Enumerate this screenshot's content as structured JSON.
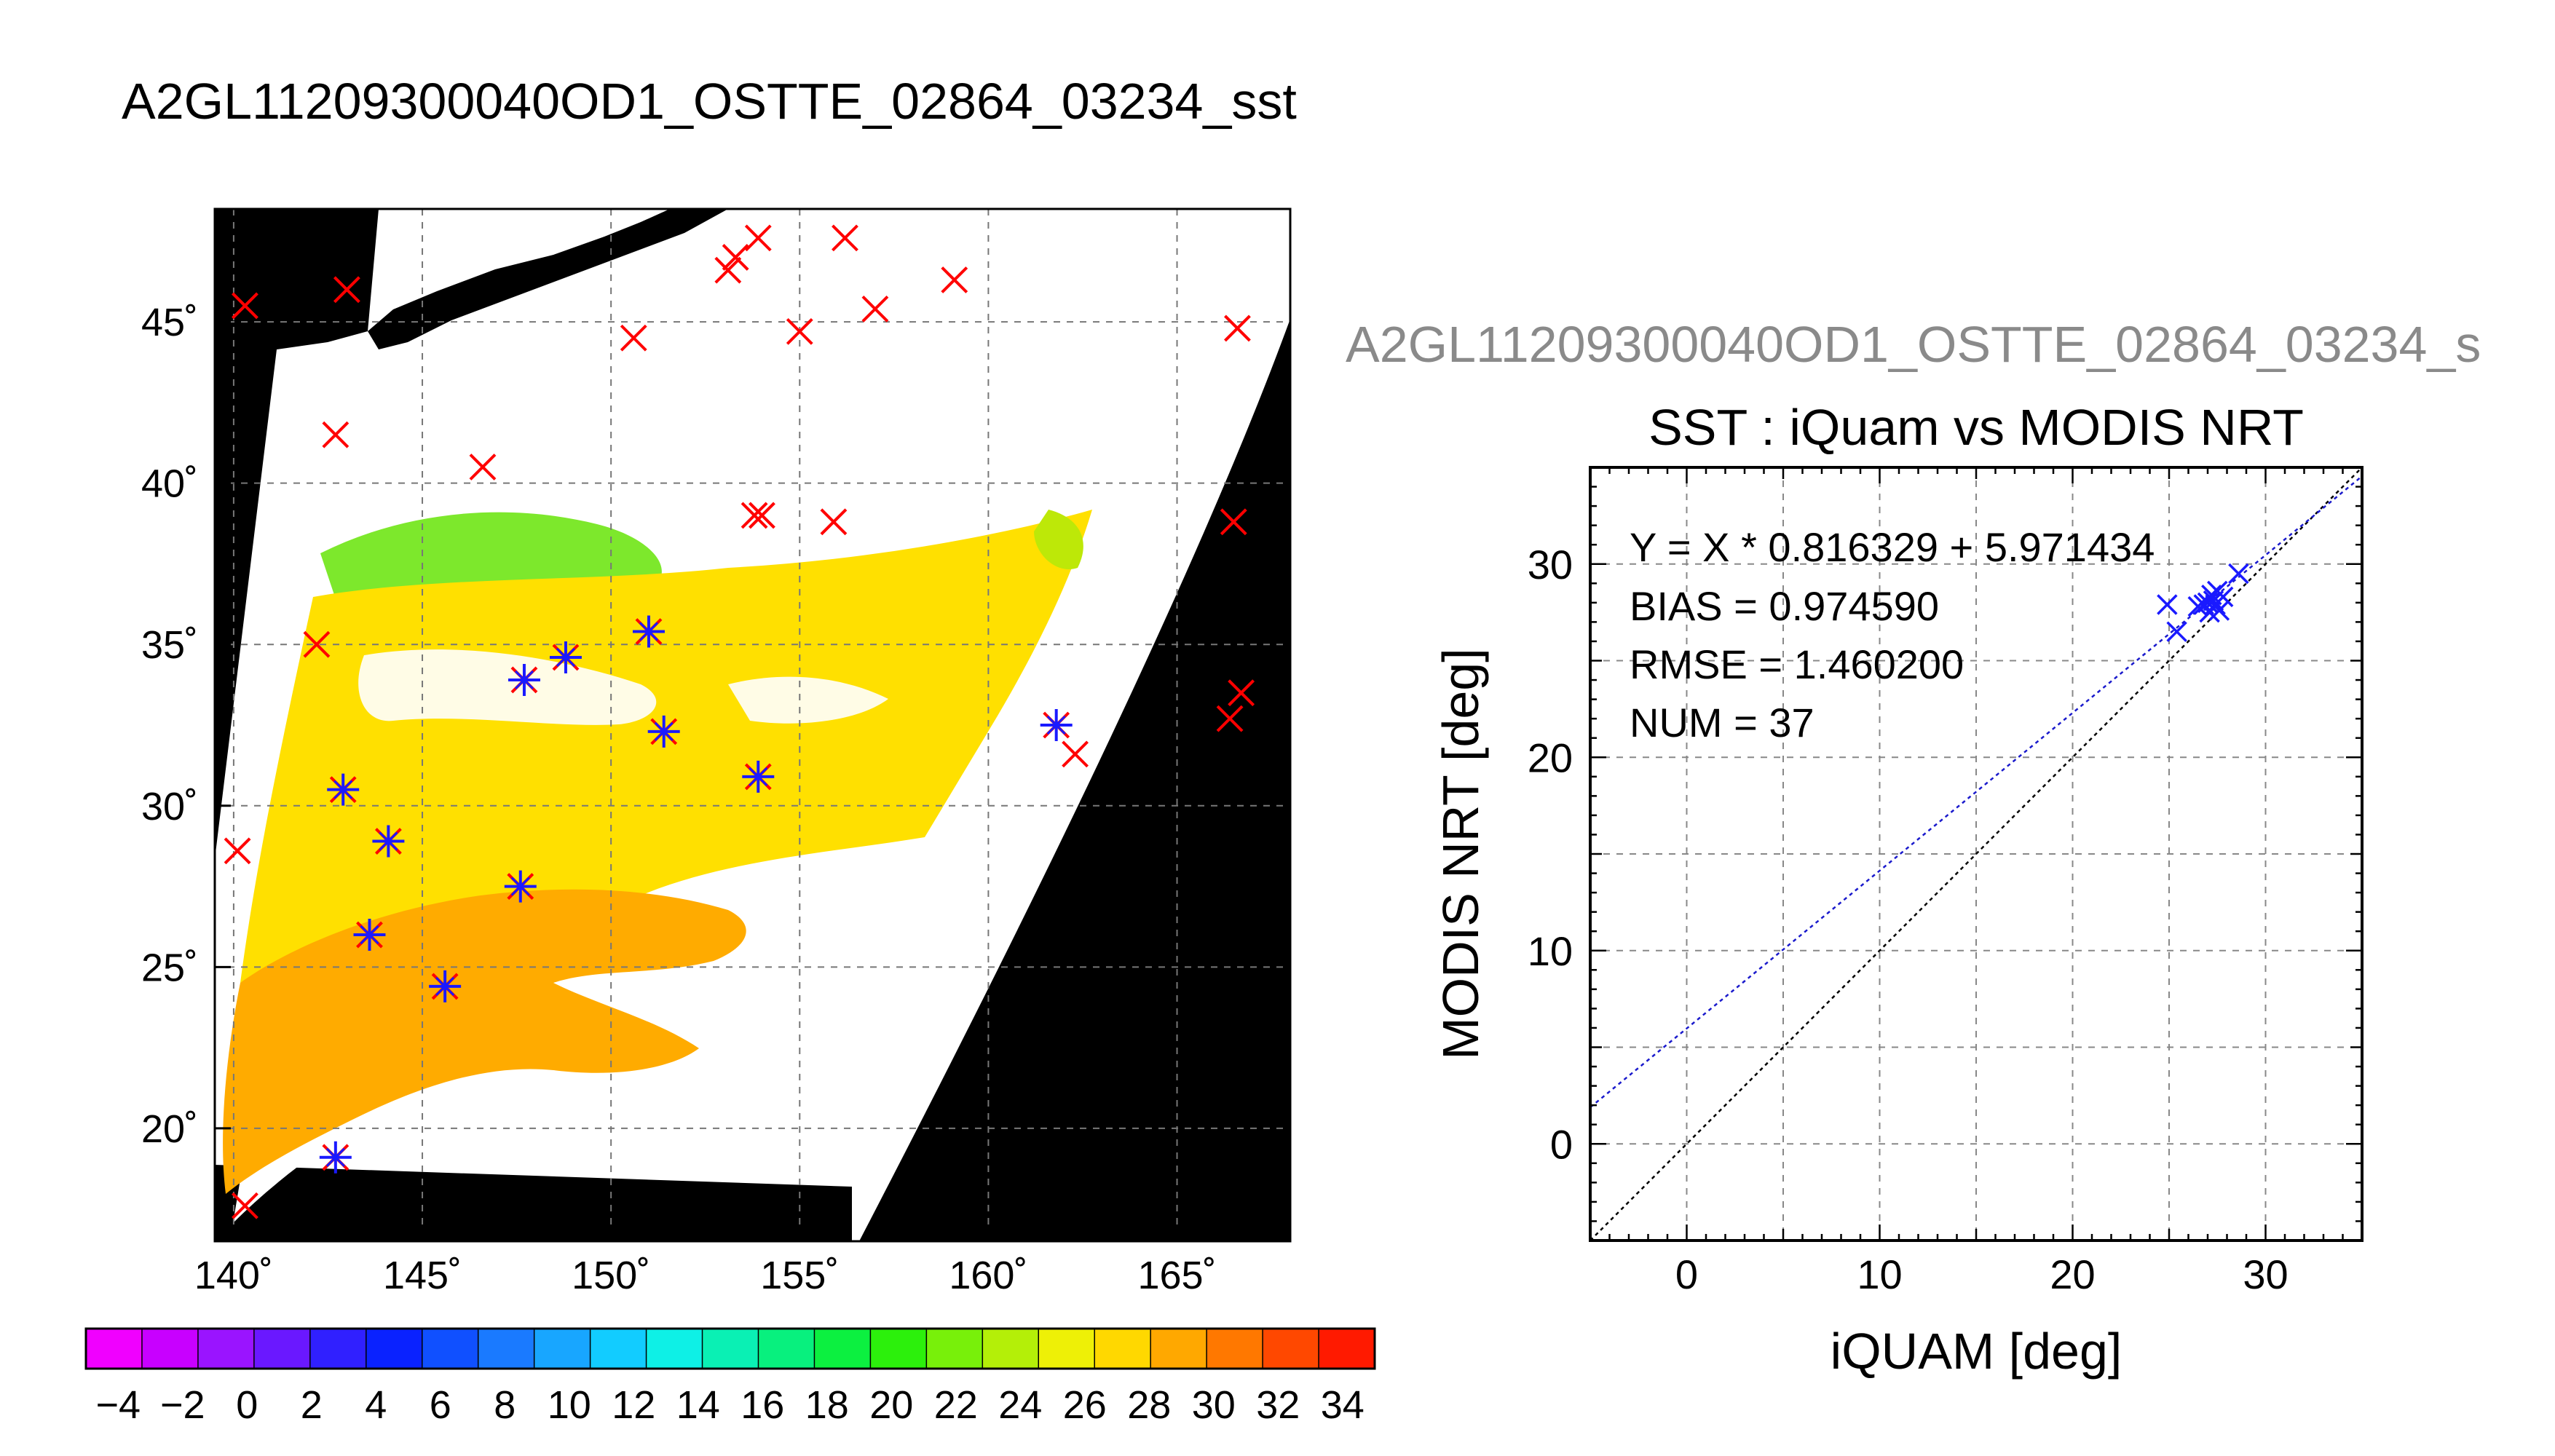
{
  "figure": {
    "main_title": "A2GL11209300040OD1_OSTTE_02864_03234_sst",
    "sub_title": "A2GL11209300040OD1_OSTTE_02864_03234_s"
  },
  "colors": {
    "background": "#ffffff",
    "land": "#000000",
    "cloud": "#ffffff",
    "marker_unmatched": "#ff0000",
    "marker_matched": "#1a1aff",
    "fit_line": "#1a1acc",
    "identity_line": "#000000"
  },
  "chart_data": [
    {
      "type": "map",
      "xlim": [
        139.5,
        168
      ],
      "ylim": [
        16.5,
        48.5
      ],
      "lon_ticks": [
        140,
        145,
        150,
        155,
        160,
        165
      ],
      "lat_ticks": [
        20,
        25,
        30,
        35,
        40,
        45
      ],
      "lon_tick_labels": [
        "140˚",
        "145˚",
        "150˚",
        "155˚",
        "160˚",
        "165˚"
      ],
      "lat_tick_labels": [
        "20˚",
        "25˚",
        "30˚",
        "35˚",
        "40˚",
        "45˚"
      ],
      "grid": true,
      "iquam_only": [
        {
          "lon": 140.3,
          "lat": 45.5
        },
        {
          "lon": 143.0,
          "lat": 46.0
        },
        {
          "lon": 153.1,
          "lat": 46.6
        },
        {
          "lon": 153.3,
          "lat": 47.0
        },
        {
          "lon": 153.9,
          "lat": 47.6
        },
        {
          "lon": 156.2,
          "lat": 47.6
        },
        {
          "lon": 159.1,
          "lat": 46.3
        },
        {
          "lon": 157.0,
          "lat": 45.4
        },
        {
          "lon": 155.0,
          "lat": 44.7
        },
        {
          "lon": 150.6,
          "lat": 44.5
        },
        {
          "lon": 166.6,
          "lat": 44.8
        },
        {
          "lon": 142.7,
          "lat": 41.5
        },
        {
          "lon": 146.6,
          "lat": 40.5
        },
        {
          "lon": 153.8,
          "lat": 39.0
        },
        {
          "lon": 154.0,
          "lat": 39.0
        },
        {
          "lon": 155.9,
          "lat": 38.8
        },
        {
          "lon": 166.5,
          "lat": 38.8
        },
        {
          "lon": 142.2,
          "lat": 35.0
        },
        {
          "lon": 166.7,
          "lat": 33.5
        },
        {
          "lon": 166.4,
          "lat": 32.7
        },
        {
          "lon": 162.3,
          "lat": 31.6
        },
        {
          "lon": 140.1,
          "lat": 28.6
        },
        {
          "lon": 140.3,
          "lat": 17.6
        }
      ],
      "matched": [
        {
          "lon": 142.9,
          "lat": 30.5
        },
        {
          "lon": 144.1,
          "lat": 28.9
        },
        {
          "lon": 143.6,
          "lat": 26.0
        },
        {
          "lon": 145.6,
          "lat": 24.4
        },
        {
          "lon": 147.7,
          "lat": 33.9
        },
        {
          "lon": 148.8,
          "lat": 34.6
        },
        {
          "lon": 147.6,
          "lat": 27.5
        },
        {
          "lon": 151.0,
          "lat": 35.4
        },
        {
          "lon": 151.4,
          "lat": 32.3
        },
        {
          "lon": 153.9,
          "lat": 30.9
        },
        {
          "lon": 161.8,
          "lat": 32.5
        },
        {
          "lon": 142.7,
          "lat": 19.1
        }
      ],
      "colorbar": {
        "min": -5,
        "max": 35,
        "step": 2,
        "tick_labels": [
          "−4",
          "−2",
          "0",
          "2",
          "4",
          "6",
          "8",
          "10",
          "12",
          "14",
          "16",
          "18",
          "20",
          "22",
          "24",
          "26",
          "28",
          "30",
          "32",
          "34"
        ],
        "colors": [
          "#f000ff",
          "#c800ff",
          "#9a14ff",
          "#6a18ff",
          "#3020ff",
          "#0a22ff",
          "#1050ff",
          "#1a7aff",
          "#18a6ff",
          "#12ccff",
          "#0ef0e6",
          "#0af0b4",
          "#08f07e",
          "#0cf040",
          "#2cf00c",
          "#78f00a",
          "#b4ef08",
          "#eef006",
          "#ffd800",
          "#ffa800",
          "#ff7800",
          "#ff4800",
          "#ff1a00"
        ]
      }
    },
    {
      "type": "scatter",
      "title": "SST : iQuam vs MODIS NRT",
      "xlabel": "iQUAM [deg]",
      "ylabel": "MODIS NRT [deg]",
      "xlim": [
        -5,
        35
      ],
      "ylim": [
        -5,
        35
      ],
      "x_ticks": [
        0,
        10,
        20,
        30
      ],
      "y_ticks": [
        0,
        10,
        20,
        30
      ],
      "grid": true,
      "annotations": [
        "Y = X * 0.816329 + 5.971434",
        "BIAS = 0.974590",
        "RMSE = 1.460200",
        "NUM = 37"
      ],
      "fit": {
        "slope": 0.816329,
        "intercept": 5.971434
      },
      "points": [
        {
          "x": 24.9,
          "y": 27.9
        },
        {
          "x": 25.4,
          "y": 26.5
        },
        {
          "x": 26.5,
          "y": 27.8
        },
        {
          "x": 26.8,
          "y": 27.9
        },
        {
          "x": 27.0,
          "y": 28.0
        },
        {
          "x": 27.1,
          "y": 27.5
        },
        {
          "x": 27.2,
          "y": 28.4
        },
        {
          "x": 27.3,
          "y": 28.1
        },
        {
          "x": 27.4,
          "y": 27.9
        },
        {
          "x": 27.5,
          "y": 28.6
        },
        {
          "x": 27.6,
          "y": 27.6
        },
        {
          "x": 27.8,
          "y": 28.3
        },
        {
          "x": 28.6,
          "y": 29.5
        }
      ]
    }
  ]
}
